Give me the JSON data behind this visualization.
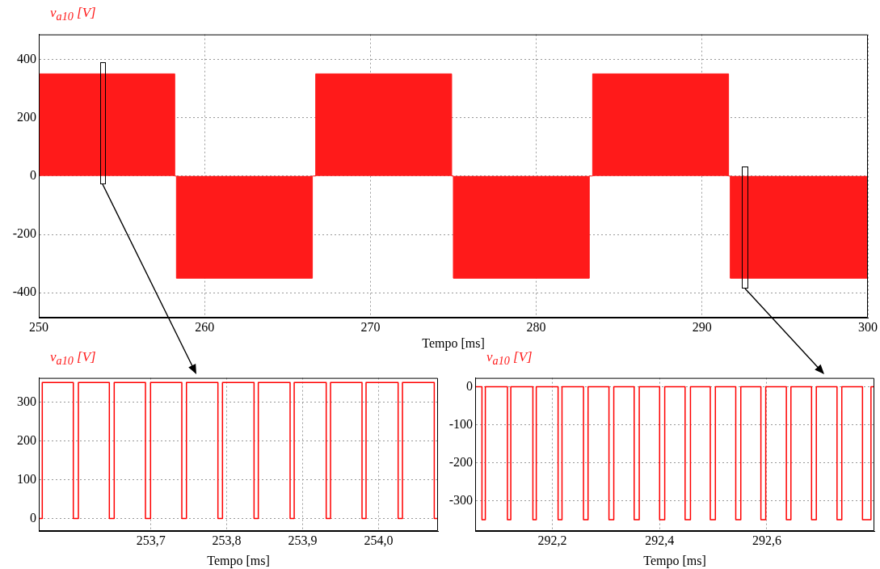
{
  "chart_data": [
    {
      "type": "area",
      "ylabel": "v$_{a10}$ [V]",
      "xlabel": "Tempo [ms]",
      "color": "#ff1a1a",
      "x": [
        250,
        258.2,
        258.3,
        266.5,
        266.7,
        274.9,
        275.0,
        283.2,
        283.4,
        291.6,
        291.7,
        300
      ],
      "values": [
        350,
        0,
        -350,
        0,
        350,
        0,
        -350,
        0,
        350,
        0,
        -350,
        -350
      ],
      "xlim": [
        250,
        300
      ],
      "xticks": [
        250,
        260,
        270,
        280,
        290,
        300
      ],
      "ylim": [
        -485,
        485
      ],
      "yticks": [
        -400,
        -200,
        0,
        200,
        400
      ],
      "grid": true,
      "marker": "none",
      "line_style": "solid"
    },
    {
      "type": "step",
      "ylabel": "v$_{a10}$ [V]",
      "xlabel": "Tempo [ms]",
      "color": "#ff0000",
      "x": [
        253.5523,
        253.5569,
        253.5978,
        253.6045,
        253.6453,
        253.6517,
        253.6929,
        253.6996,
        253.7408,
        253.7469,
        253.7884,
        253.7944,
        253.836,
        253.8416,
        253.8835,
        253.8889,
        253.9311,
        253.9368,
        253.9783,
        253.9836,
        254.0259,
        254.0316,
        254.0735,
        254.0784
      ],
      "values": [
        0,
        350,
        0,
        350,
        0,
        350,
        0,
        350,
        0,
        350,
        0,
        350,
        0,
        350,
        0,
        350,
        0,
        350,
        0,
        350,
        0,
        350,
        0,
        0
      ],
      "xlim": [
        253.5523,
        254.0784
      ],
      "xticks": [
        {
          "value": 253.7,
          "label": "253,7"
        },
        {
          "value": 253.8,
          "label": "253,8"
        },
        {
          "value": 253.9,
          "label": "253,9"
        },
        {
          "value": 254.0,
          "label": "254,0"
        }
      ],
      "ylim": [
        -32,
        362
      ],
      "yticks": [
        0,
        100,
        200,
        300
      ],
      "grid": true,
      "marker": "none",
      "line_style": "solid"
    },
    {
      "type": "step",
      "ylabel": "v$_{a10}$ [V]",
      "xlabel": "Tempo [ms]",
      "color": "#ff0000",
      "x": [
        292.0559,
        292.0686,
        292.0749,
        292.1161,
        292.1224,
        292.1636,
        292.1699,
        292.2106,
        292.2179,
        292.258,
        292.2665,
        292.3055,
        292.3145,
        292.3525,
        292.362,
        292.4,
        292.4095,
        292.4475,
        292.4575,
        292.4945,
        292.504,
        292.542,
        292.5514,
        292.5889,
        292.5979,
        292.6364,
        292.6449,
        292.6834,
        292.6923,
        292.7309,
        292.7398,
        292.7784,
        292.7942,
        292.8005
      ],
      "values": [
        0,
        -350,
        0,
        -350,
        0,
        -350,
        0,
        -350,
        0,
        -350,
        0,
        -350,
        0,
        -350,
        0,
        -350,
        0,
        -350,
        0,
        -350,
        0,
        -350,
        0,
        -350,
        0,
        -350,
        0,
        -350,
        0,
        -350,
        0,
        -350,
        0,
        0
      ],
      "xlim": [
        292.0559,
        292.8005
      ],
      "xticks": [
        {
          "value": 292.2,
          "label": "292,2"
        },
        {
          "value": 292.4,
          "label": "292,4"
        },
        {
          "value": 292.6,
          "label": "292,6"
        }
      ],
      "ylim": [
        -380,
        23
      ],
      "yticks": [
        -300,
        -200,
        -100,
        0
      ],
      "grid": true,
      "marker": "none",
      "line_style": "solid"
    }
  ]
}
